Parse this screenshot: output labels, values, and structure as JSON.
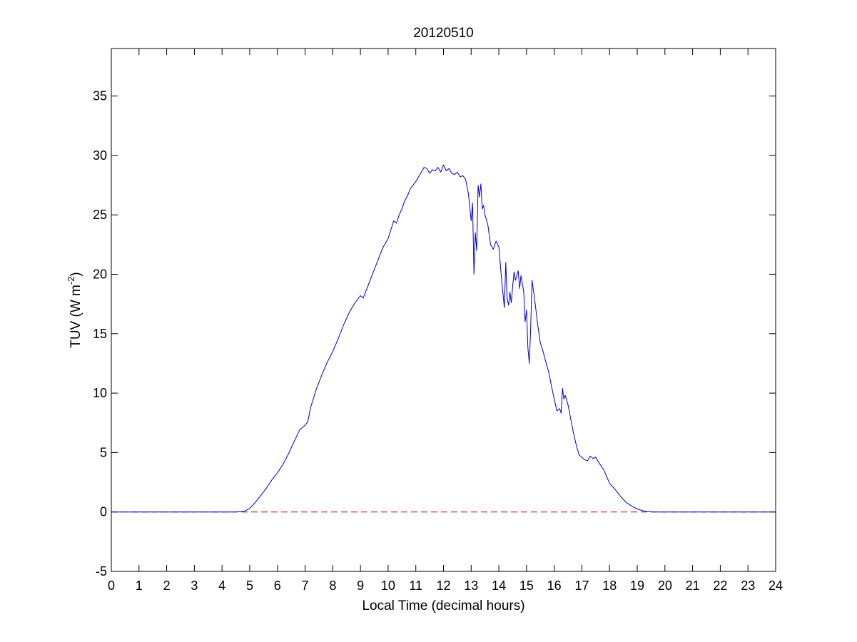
{
  "chart_data": {
    "type": "line",
    "title": "20120510",
    "xlabel": "Local Time (decimal hours)",
    "ylabel_main": "TUV (W m",
    "ylabel_sup": "-2",
    "ylabel_close": ")",
    "xlim": [
      0,
      24
    ],
    "ylim": [
      -5,
      39
    ],
    "xticks": [
      0,
      1,
      2,
      3,
      4,
      5,
      6,
      7,
      8,
      9,
      10,
      11,
      12,
      13,
      14,
      15,
      16,
      17,
      18,
      19,
      20,
      21,
      22,
      23,
      24
    ],
    "yticks": [
      -5,
      0,
      5,
      10,
      15,
      20,
      25,
      30,
      35
    ],
    "grid": false,
    "legend": "none",
    "colors": {
      "series": "#0000c8",
      "reference": "#c80000",
      "axes": "#000000"
    },
    "series": [
      {
        "x": [
          0,
          4.5,
          4.8,
          5.0,
          5.2,
          5.4,
          5.6,
          5.8,
          6.0,
          6.2,
          6.4,
          6.6,
          6.8,
          7.0,
          7.1,
          7.2,
          7.4,
          7.6,
          7.8,
          8.0,
          8.2,
          8.4,
          8.6,
          8.8,
          9.0,
          9.1,
          9.2,
          9.4,
          9.6,
          9.8,
          10.0,
          10.2,
          10.3,
          10.4,
          10.5,
          10.6,
          10.7,
          10.8,
          10.9,
          11.0,
          11.1,
          11.2,
          11.3,
          11.4,
          11.5,
          11.6,
          11.7,
          11.8,
          11.9,
          12.0,
          12.1,
          12.2,
          12.3,
          12.4,
          12.5,
          12.6,
          12.7,
          12.8,
          12.9,
          13.0,
          13.05,
          13.1,
          13.15,
          13.2,
          13.25,
          13.3,
          13.35,
          13.4,
          13.45,
          13.5,
          13.6,
          13.7,
          13.8,
          13.9,
          14.0,
          14.1,
          14.2,
          14.25,
          14.3,
          14.35,
          14.4,
          14.45,
          14.5,
          14.55,
          14.6,
          14.7,
          14.75,
          14.8,
          14.9,
          14.95,
          15.0,
          15.05,
          15.1,
          15.15,
          15.2,
          15.3,
          15.4,
          15.5,
          15.6,
          15.7,
          15.8,
          15.9,
          16.0,
          16.1,
          16.2,
          16.25,
          16.3,
          16.35,
          16.4,
          16.5,
          16.6,
          16.7,
          16.8,
          16.9,
          17.0,
          17.1,
          17.2,
          17.3,
          17.4,
          17.5,
          17.6,
          17.8,
          18.0,
          18.2,
          18.4,
          18.6,
          18.8,
          19.0,
          19.2,
          19.4,
          19.6,
          20.0,
          24.0
        ],
        "y": [
          0,
          0,
          0.05,
          0.3,
          0.8,
          1.4,
          2.0,
          2.7,
          3.3,
          4.0,
          4.9,
          5.9,
          6.9,
          7.3,
          7.6,
          8.8,
          10.3,
          11.5,
          12.6,
          13.5,
          14.6,
          15.8,
          16.8,
          17.6,
          18.2,
          18.0,
          18.6,
          19.8,
          21.0,
          22.2,
          23.0,
          24.5,
          24.3,
          25.0,
          25.5,
          26.2,
          26.6,
          27.2,
          27.5,
          27.8,
          28.2,
          28.6,
          29.0,
          28.9,
          28.5,
          28.8,
          28.7,
          29.0,
          28.6,
          29.2,
          28.7,
          28.9,
          28.5,
          28.4,
          28.6,
          28.2,
          28.3,
          28.0,
          26.8,
          24.5,
          26.0,
          20.0,
          23.5,
          22.0,
          27.5,
          26.5,
          27.6,
          25.5,
          25.8,
          25.0,
          24.2,
          22.5,
          22.1,
          22.8,
          22.3,
          19.5,
          17.2,
          21.0,
          18.0,
          17.4,
          18.5,
          17.6,
          19.0,
          20.2,
          19.5,
          20.3,
          18.8,
          19.9,
          18.5,
          16.0,
          17.0,
          13.8,
          12.5,
          15.5,
          19.5,
          17.8,
          15.8,
          14.2,
          13.5,
          12.6,
          11.8,
          10.6,
          9.5,
          8.5,
          8.7,
          8.3,
          10.4,
          9.5,
          9.8,
          9.0,
          7.8,
          6.6,
          5.6,
          4.8,
          4.6,
          4.4,
          4.3,
          4.7,
          4.5,
          4.6,
          4.2,
          3.5,
          2.4,
          1.9,
          1.3,
          0.8,
          0.5,
          0.25,
          0.1,
          0.02,
          0,
          0,
          0
        ]
      },
      {
        "style": "dashed",
        "x": [
          0,
          24
        ],
        "y": [
          0,
          0
        ]
      }
    ]
  }
}
